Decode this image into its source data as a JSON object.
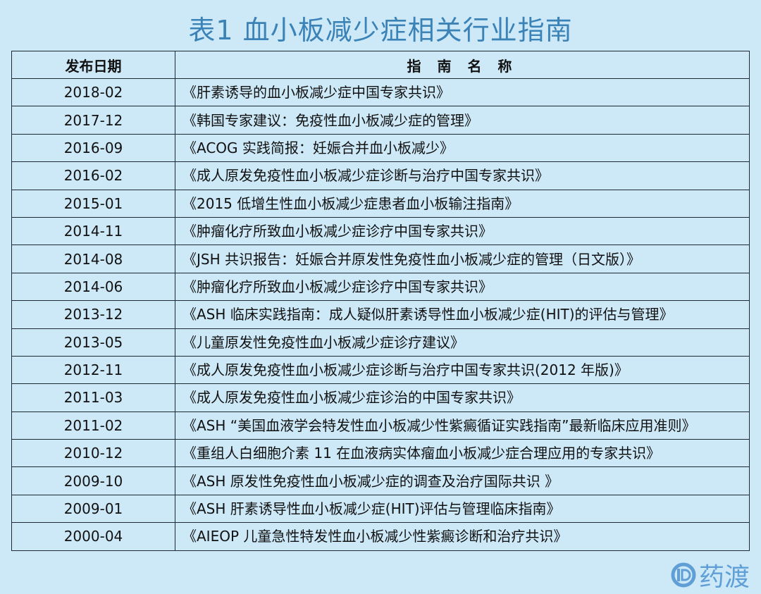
{
  "title": "表1 血小板减少症相关行业指南",
  "table": {
    "headers": [
      "发布日期",
      "指 南 名 称"
    ],
    "rows": [
      {
        "date": "2018-02",
        "name": "《肝素诱导的血小板减少症中国专家共识》"
      },
      {
        "date": "2017-12",
        "name": "《韩国专家建议：免疫性血小板减少症的管理》"
      },
      {
        "date": "2016-09",
        "name": "《ACOG 实践简报：妊娠合并血小板减少》"
      },
      {
        "date": "2016-02",
        "name": "《成人原发免疫性血小板减少症诊断与治疗中国专家共识》"
      },
      {
        "date": "2015-01",
        "name": "《2015 低增生性血小板减少症患者血小板输注指南》"
      },
      {
        "date": "2014-11",
        "name": "《肿瘤化疗所致血小板减少症诊疗中国专家共识》"
      },
      {
        "date": "2014-08",
        "name": "《JSH 共识报告：妊娠合并原发性免疫性血小板减少症的管理（日文版）》"
      },
      {
        "date": "2014-06",
        "name": "《肿瘤化疗所致血小板减少症诊疗中国专家共识》"
      },
      {
        "date": "2013-12",
        "name": "《ASH 临床实践指南：成人疑似肝素诱导性血小板减少症(HIT)的评估与管理》"
      },
      {
        "date": "2013-05",
        "name": "《儿童原发性免疫性血小板减少症诊疗建议》"
      },
      {
        "date": "2012-11",
        "name": "《成人原发免疫性血小板减少症诊断与治疗中国专家共识(2012 年版)》"
      },
      {
        "date": "2011-03",
        "name": "《成人原发免疫性血小板减少症诊治的中国专家共识》"
      },
      {
        "date": "2011-02",
        "name": "《ASH “美国血液学会特发性血小板减少性紫癜循证实践指南”最新临床应用准则》"
      },
      {
        "date": "2010-12",
        "name": "《重组人白细胞介素 11 在血液病实体瘤血小板减少症合理应用的专家共识》"
      },
      {
        "date": "2009-10",
        "name": "《ASH 原发性免疫性血小板减少症的调查及治疗国际共识 》"
      },
      {
        "date": "2009-01",
        "name": "《ASH 肝素诱导性血小板减少症(HIT)评估与管理临床指南》"
      },
      {
        "date": "2000-04",
        "name": "《AIEOP 儿童急性特发性血小板减少性紫癜诊断和治疗共识》"
      }
    ]
  },
  "watermark": {
    "text": "药渡",
    "color": "#4d93cf"
  }
}
